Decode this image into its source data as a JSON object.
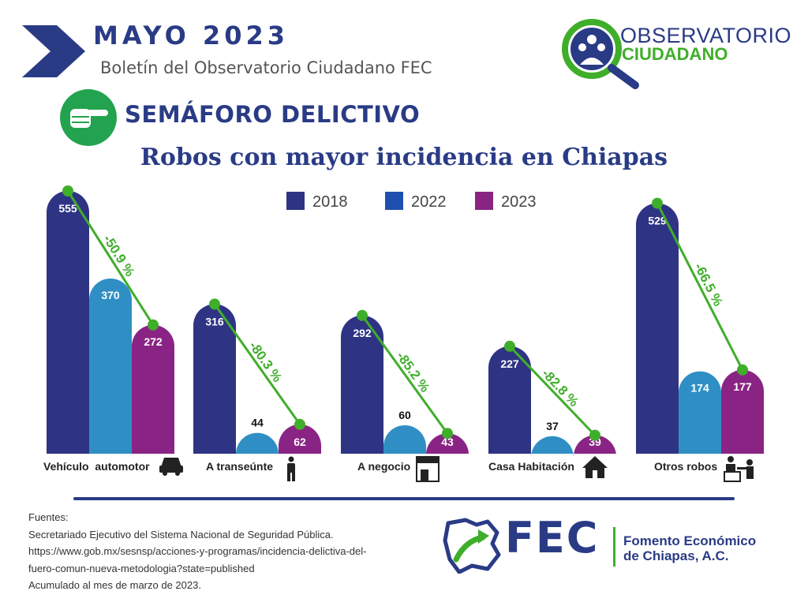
{
  "header": {
    "month": "MAYO  2023",
    "subtitle": "Boletín del Observatorio Ciudadano FEC",
    "logo_line1": "OBSERVATORIO",
    "logo_line2": "CIUDADANO"
  },
  "section_title": "SEMÁFORO DELICTIVO",
  "footer": {
    "sources": [
      "Fuentes:",
      "Secretariado Ejecutivo del Sistema Nacional de Seguridad Pública.",
      "https://www.gob.mx/sesnsp/acciones-y-programas/incidencia-delictiva-del-",
      "fuero-comun-nueva-metodologia?state=published",
      "Acumulado al mes de marzo de 2023."
    ],
    "fec_logo": "FEC",
    "fec_name_line1": "Fomento Económico",
    "fec_name_line2": "de Chiapas, A.C."
  },
  "colors": {
    "navy": "#2a3b86",
    "green": "#3fae2a",
    "series_2018": "#2e3483",
    "series_2022": "#2f8fc4",
    "series_2023": "#8a2484",
    "legend_2022": "#1f50b0"
  },
  "chart_data": {
    "type": "bar",
    "title": "Robos con mayor incidencia en Chiapas",
    "categories": [
      "Vehículo  automotor",
      "A transeúnte",
      "A negocio",
      "Casa Habitación",
      "Otros robos"
    ],
    "category_icons": [
      "car-icon",
      "pedestrian-icon",
      "store-icon",
      "house-icon",
      "robbery-icon"
    ],
    "series": [
      {
        "name": "2018",
        "values": [
          555,
          316,
          292,
          227,
          529
        ]
      },
      {
        "name": "2022",
        "values": [
          370,
          44,
          60,
          37,
          174
        ]
      },
      {
        "name": "2023",
        "values": [
          272,
          62,
          43,
          39,
          177
        ]
      }
    ],
    "change_labels": [
      "-50.9 %",
      "-80.3 %",
      "-85.2 %",
      "-82.8 %",
      "-66.5 %"
    ],
    "legend_position": "top",
    "grid": false
  }
}
